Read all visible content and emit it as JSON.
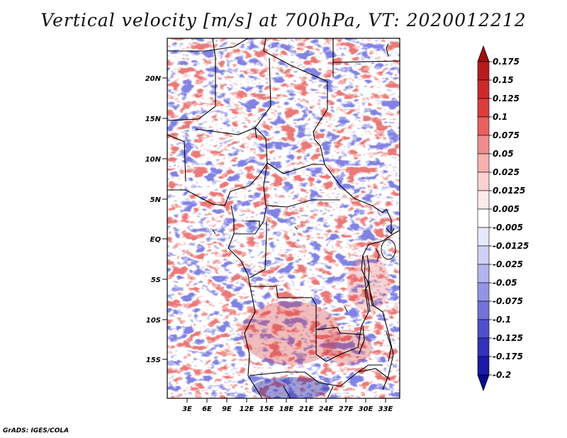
{
  "title": "Vertical velocity [m/s] at 700hPa, VT: 2020012212",
  "credit": "GrADS: IGES/COLA",
  "map": {
    "lat_labels": [
      "20N",
      "15N",
      "10N",
      "5N",
      "EQ",
      "5S",
      "10S",
      "15S"
    ],
    "lon_labels": [
      "3E",
      "6E",
      "9E",
      "12E",
      "15E",
      "18E",
      "21E",
      "24E",
      "27E",
      "30E",
      "33E"
    ]
  },
  "colorbar": {
    "labels": [
      "0.175",
      "0.15",
      "0.125",
      "0.1",
      "0.075",
      "0.05",
      "0.025",
      "0.0125",
      "0.005",
      "-0.005",
      "-0.0125",
      "-0.025",
      "-0.05",
      "-0.075",
      "-0.1",
      "-0.125",
      "-0.175",
      "-0.2"
    ],
    "colors": [
      "#a01010",
      "#b81c1c",
      "#cc2a2a",
      "#dc3c3c",
      "#e86060",
      "#f08c8c",
      "#f6b0b0",
      "#fad0d0",
      "#fdeaea",
      "#ffffff",
      "#e8e8fb",
      "#d0d0f6",
      "#b4b4f0",
      "#9494e6",
      "#7272da",
      "#5050cc",
      "#3232ba",
      "#1a1aa6",
      "#0a0a90"
    ]
  }
}
